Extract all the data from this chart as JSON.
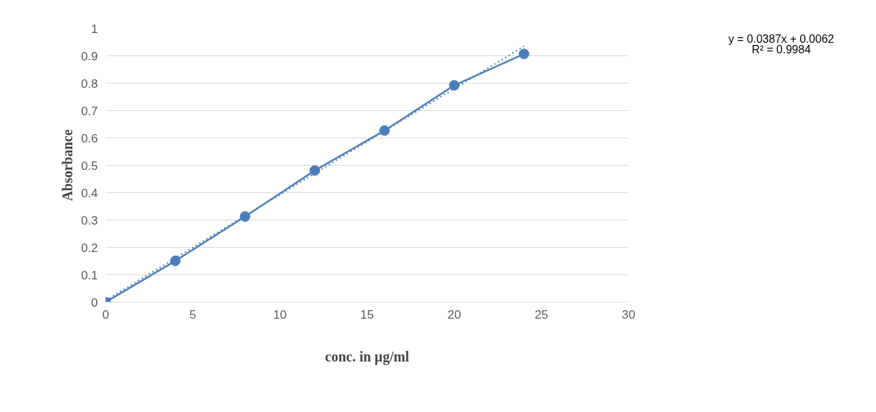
{
  "chart_data": {
    "type": "line",
    "xlabel": "conc. in µg/ml",
    "ylabel": "Absorbance",
    "annotations": [
      "y = 0.0387x + 0.0062",
      "R² = 0.9984"
    ],
    "series": [
      {
        "color": "#4a7ebb",
        "x": [
          0,
          4,
          8,
          12,
          16,
          20,
          24
        ],
        "values": [
          0,
          0.151,
          0.313,
          0.481,
          0.627,
          0.792,
          0.907
        ],
        "marker": "circle",
        "line_style": "solid"
      },
      {
        "type": "line",
        "color": "#4a7ebb",
        "x": [
          0,
          24
        ],
        "values": [
          0.006,
          0.935
        ],
        "marker": "none",
        "line_style": "dotted"
      }
    ],
    "xlim": [
      0,
      30
    ],
    "xticks": [
      0,
      5,
      10,
      15,
      20,
      25,
      30
    ],
    "ylim": [
      0,
      1
    ],
    "yticks": [
      0,
      0.1,
      0.2,
      0.3,
      0.4,
      0.5,
      0.6,
      0.7,
      0.8,
      0.9,
      1
    ],
    "grid": "y"
  }
}
